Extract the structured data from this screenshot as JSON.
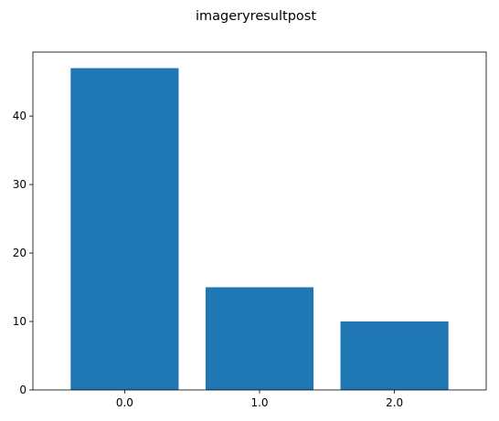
{
  "chart_data": {
    "type": "bar",
    "title": "imageryresultpost",
    "categories": [
      "0.0",
      "1.0",
      "2.0"
    ],
    "values": [
      47,
      15,
      10
    ],
    "xlabel": "",
    "ylabel": "",
    "ylim": [
      0,
      49.35
    ],
    "yticks": [
      0,
      10,
      20,
      30,
      40
    ],
    "grid": false,
    "bar_color": "#1f77b4"
  }
}
